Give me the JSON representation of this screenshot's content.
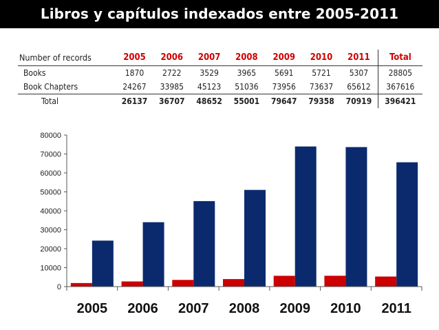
{
  "slide_title": "Libros y capítulos indexados entre 2005-2011",
  "table": {
    "corner_label": "Number of records",
    "years": [
      "2005",
      "2006",
      "2007",
      "2008",
      "2009",
      "2010",
      "2011"
    ],
    "total_label": "Total",
    "rows": [
      {
        "label": "Books",
        "values": [
          "1870",
          "2722",
          "3529",
          "3965",
          "5691",
          "5721",
          "5307"
        ],
        "total": "28805"
      },
      {
        "label": "Book Chapters",
        "values": [
          "24267",
          "33985",
          "45123",
          "51036",
          "73956",
          "73637",
          "65612"
        ],
        "total": "367616"
      }
    ],
    "total_row": {
      "label": "Total",
      "values": [
        "26137",
        "36707",
        "48652",
        "55001",
        "79647",
        "79358",
        "70919"
      ],
      "total": "396421"
    }
  },
  "chart_data": {
    "type": "bar",
    "categories": [
      "2005",
      "2006",
      "2007",
      "2008",
      "2009",
      "2010",
      "2011"
    ],
    "series": [
      {
        "values": [
          1870,
          2722,
          3529,
          3965,
          5691,
          5721,
          5307
        ],
        "color": "#cc0000"
      },
      {
        "values": [
          24267,
          33985,
          45123,
          51036,
          73956,
          73637,
          65612
        ],
        "color": "#0b2a6e"
      }
    ],
    "ylim": [
      0,
      80000
    ],
    "yticks": [
      0,
      10000,
      20000,
      30000,
      40000,
      50000,
      60000,
      70000,
      80000
    ],
    "grid": false,
    "legend": "none"
  }
}
